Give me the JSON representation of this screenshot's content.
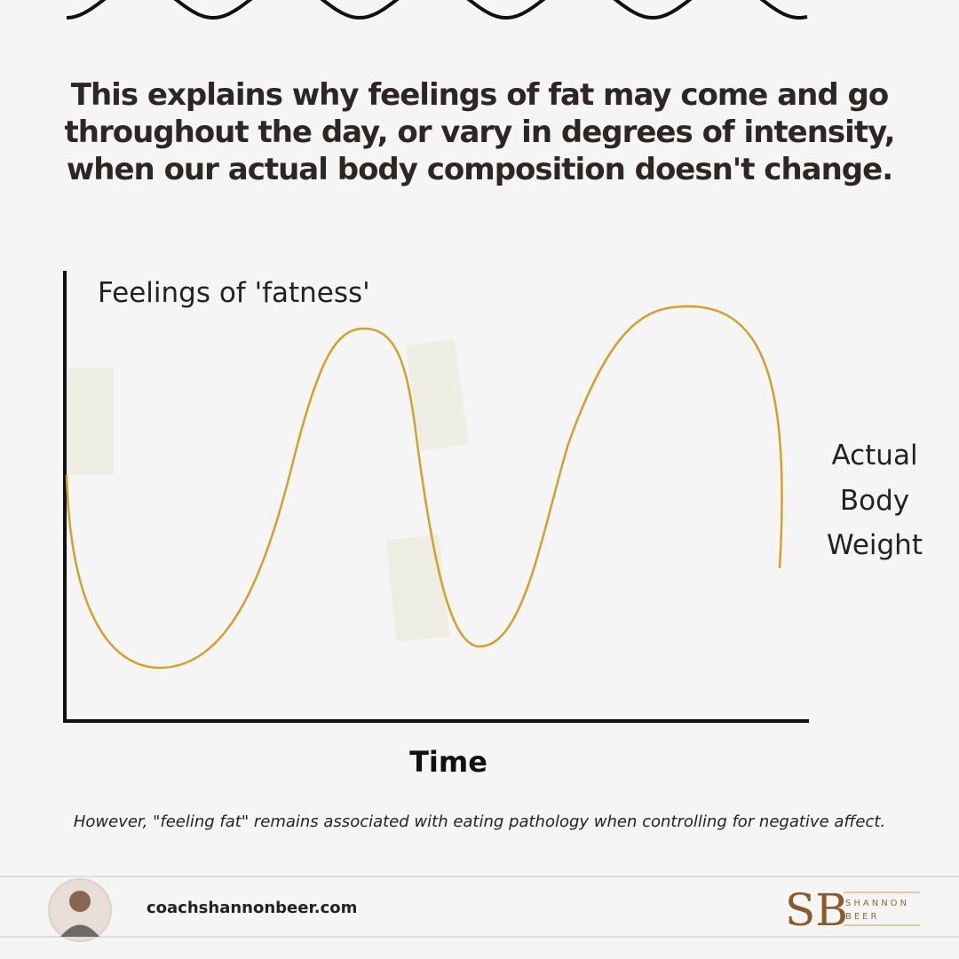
{
  "header": {
    "title_lines": [
      "This explains why feelings of fat may come and go",
      "throughout the day, or vary in degrees of intensity,",
      "when our actual body composition doesn't change."
    ]
  },
  "diagram": {
    "y_label": "Feelings of 'fatness'",
    "line_label_lines": [
      "Actual",
      "Body",
      "Weight"
    ],
    "x_label": "Time"
  },
  "footnote": "However, \"feeling fat\" remains associated with eating pathology when controlling for negative affect.",
  "footer": {
    "website": "coachshannonbeer.com",
    "logo": {
      "initials": "SB",
      "first_name": "SHANNON",
      "last_name": "BEER"
    }
  }
}
